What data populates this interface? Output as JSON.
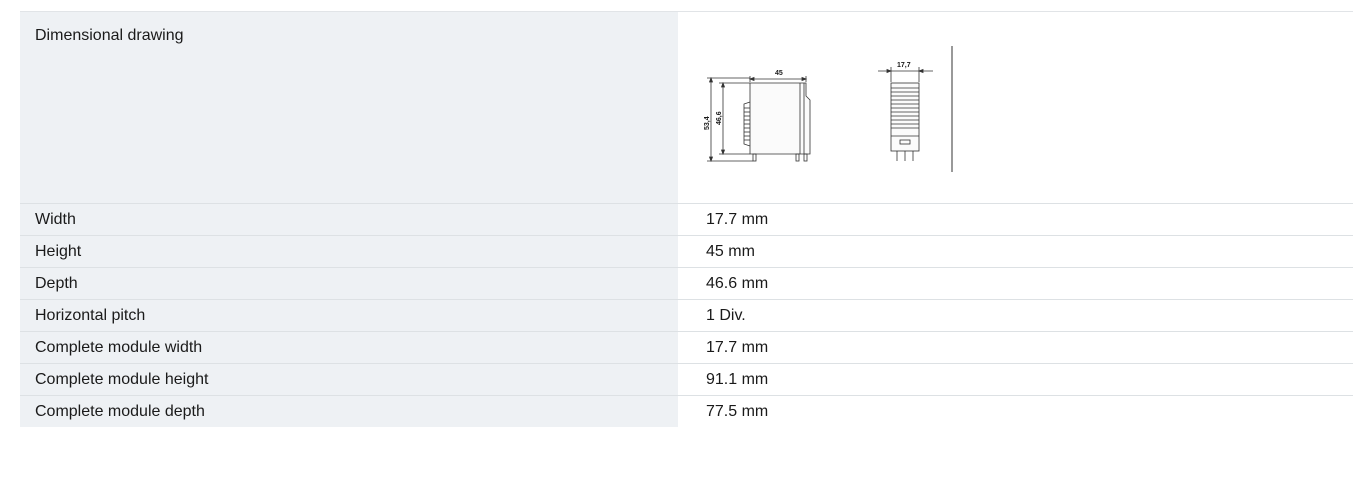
{
  "specs": {
    "drawing_label": "Dimensional drawing",
    "drawing": {
      "dim_width_top": "45",
      "dim_height_outer": "53,4",
      "dim_height_inner": "46,6",
      "dim_side_width": "17,7"
    },
    "rows": [
      {
        "label": "Width",
        "value": "17.7 mm"
      },
      {
        "label": "Height",
        "value": "45 mm"
      },
      {
        "label": "Depth",
        "value": "46.6 mm"
      },
      {
        "label": "Horizontal pitch",
        "value": "1 Div."
      },
      {
        "label": "Complete module width",
        "value": "17.7 mm"
      },
      {
        "label": "Complete module height",
        "value": "91.1 mm"
      },
      {
        "label": "Complete module depth",
        "value": "77.5 mm"
      }
    ]
  }
}
